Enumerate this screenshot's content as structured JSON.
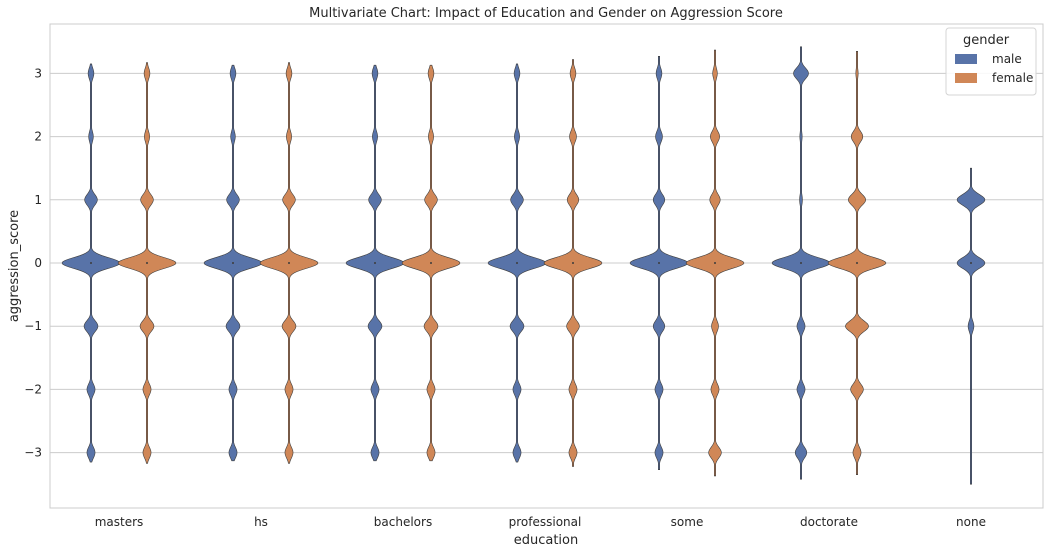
{
  "chart_data": {
    "type": "violin",
    "title": "Multivariate Chart: Impact of Education and Gender on Aggression Score",
    "xlabel": "education",
    "ylabel": "aggression_score",
    "categories": [
      "masters",
      "hs",
      "bachelors",
      "professional",
      "some",
      "doctorate",
      "none"
    ],
    "yticks": [
      -3,
      -2,
      -1,
      0,
      1,
      2,
      3
    ],
    "ylim": [
      -3.9,
      3.8
    ],
    "grid": "horizontal",
    "legend": {
      "title": "gender",
      "placement": "top-right",
      "entries": [
        {
          "name": "male",
          "color": "#5873a8"
        },
        {
          "name": "female",
          "color": "#d08757"
        }
      ]
    },
    "series": [
      {
        "name": "male",
        "color": "#5873a8",
        "violins": [
          {
            "category": "masters",
            "median": 0,
            "range": [
              -3.15,
              3.15
            ],
            "peaks": [
              [
                3,
                0.1
              ],
              [
                2,
                0.08
              ],
              [
                1,
                0.22
              ],
              [
                0,
                1.0
              ],
              [
                -1,
                0.24
              ],
              [
                -2,
                0.14
              ],
              [
                -3,
                0.14
              ]
            ]
          },
          {
            "category": "hs",
            "median": 0,
            "range": [
              -3.13,
              3.13
            ],
            "peaks": [
              [
                3,
                0.1
              ],
              [
                2,
                0.08
              ],
              [
                1,
                0.22
              ],
              [
                0,
                1.0
              ],
              [
                -1,
                0.24
              ],
              [
                -2,
                0.14
              ],
              [
                -3,
                0.14
              ]
            ]
          },
          {
            "category": "bachelors",
            "median": 0,
            "range": [
              -3.13,
              3.13
            ],
            "peaks": [
              [
                3,
                0.1
              ],
              [
                2,
                0.09
              ],
              [
                1,
                0.22
              ],
              [
                0,
                1.0
              ],
              [
                -1,
                0.24
              ],
              [
                -2,
                0.14
              ],
              [
                -3,
                0.14
              ]
            ]
          },
          {
            "category": "professional",
            "median": 0,
            "range": [
              -3.15,
              3.15
            ],
            "peaks": [
              [
                3,
                0.1
              ],
              [
                2,
                0.09
              ],
              [
                1,
                0.22
              ],
              [
                0,
                1.0
              ],
              [
                -1,
                0.24
              ],
              [
                -2,
                0.14
              ],
              [
                -3,
                0.14
              ]
            ]
          },
          {
            "category": "some",
            "median": 0,
            "range": [
              -3.27,
              3.27
            ],
            "peaks": [
              [
                3,
                0.1
              ],
              [
                2,
                0.12
              ],
              [
                1,
                0.2
              ],
              [
                0,
                1.0
              ],
              [
                -1,
                0.2
              ],
              [
                -2,
                0.14
              ],
              [
                -3,
                0.14
              ]
            ]
          },
          {
            "category": "doctorate",
            "median": 0,
            "range": [
              -3.42,
              3.42
            ],
            "peaks": [
              [
                3,
                0.26
              ],
              [
                2,
                0.04
              ],
              [
                1,
                0.05
              ],
              [
                0,
                1.0
              ],
              [
                -1,
                0.14
              ],
              [
                -2,
                0.14
              ],
              [
                -3,
                0.2
              ]
            ]
          },
          {
            "category": "none",
            "median": 0,
            "range": [
              -3.5,
              1.5
            ],
            "peaks": [
              [
                1,
                0.48
              ],
              [
                0,
                0.48
              ],
              [
                -1,
                0.1
              ]
            ]
          }
        ]
      },
      {
        "name": "female",
        "color": "#d08757",
        "violins": [
          {
            "category": "masters",
            "median": 0,
            "range": [
              -3.17,
              3.17
            ],
            "peaks": [
              [
                3,
                0.1
              ],
              [
                2,
                0.09
              ],
              [
                1,
                0.22
              ],
              [
                0,
                1.0
              ],
              [
                -1,
                0.24
              ],
              [
                -2,
                0.14
              ],
              [
                -3,
                0.14
              ]
            ]
          },
          {
            "category": "hs",
            "median": 0,
            "range": [
              -3.17,
              3.17
            ],
            "peaks": [
              [
                3,
                0.1
              ],
              [
                2,
                0.09
              ],
              [
                1,
                0.22
              ],
              [
                0,
                1.0
              ],
              [
                -1,
                0.24
              ],
              [
                -2,
                0.14
              ],
              [
                -3,
                0.14
              ]
            ]
          },
          {
            "category": "bachelors",
            "median": 0,
            "range": [
              -3.13,
              3.13
            ],
            "peaks": [
              [
                3,
                0.1
              ],
              [
                2,
                0.09
              ],
              [
                1,
                0.22
              ],
              [
                0,
                1.0
              ],
              [
                -1,
                0.24
              ],
              [
                -2,
                0.14
              ],
              [
                -3,
                0.14
              ]
            ]
          },
          {
            "category": "professional",
            "median": 0,
            "range": [
              -3.22,
              3.22
            ],
            "peaks": [
              [
                3,
                0.1
              ],
              [
                2,
                0.12
              ],
              [
                1,
                0.2
              ],
              [
                0,
                1.0
              ],
              [
                -1,
                0.22
              ],
              [
                -2,
                0.14
              ],
              [
                -3,
                0.14
              ]
            ]
          },
          {
            "category": "some",
            "median": 0,
            "range": [
              -3.37,
              3.37
            ],
            "peaks": [
              [
                3,
                0.08
              ],
              [
                2,
                0.16
              ],
              [
                1,
                0.18
              ],
              [
                0,
                1.0
              ],
              [
                -1,
                0.12
              ],
              [
                -2,
                0.14
              ],
              [
                -3,
                0.22
              ]
            ]
          },
          {
            "category": "doctorate",
            "median": 0,
            "range": [
              -3.35,
              3.35
            ],
            "peaks": [
              [
                3,
                0.04
              ],
              [
                2,
                0.2
              ],
              [
                1,
                0.3
              ],
              [
                0,
                1.0
              ],
              [
                -1,
                0.4
              ],
              [
                -2,
                0.22
              ],
              [
                -3,
                0.14
              ]
            ]
          }
        ]
      }
    ]
  }
}
